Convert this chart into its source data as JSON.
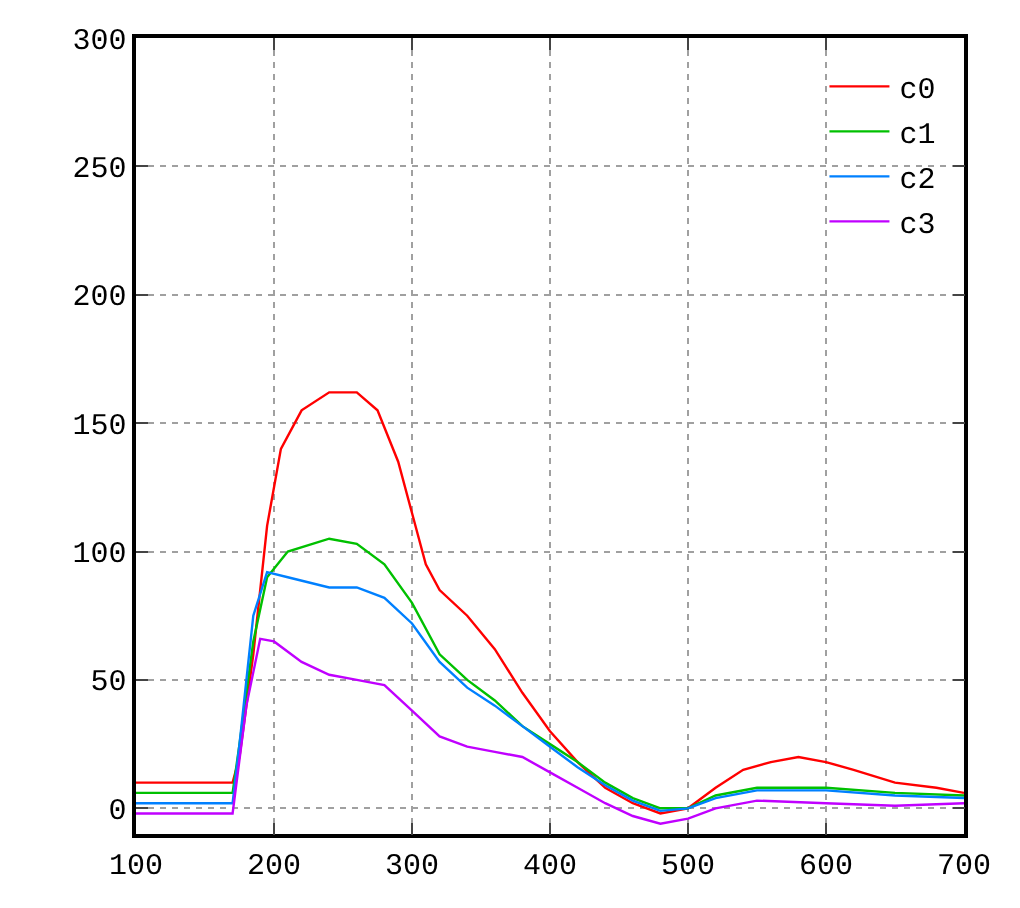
{
  "chart_data": {
    "type": "line",
    "xlim": [
      100,
      700
    ],
    "ylim": [
      -10,
      300
    ],
    "xticks": [
      100,
      200,
      300,
      400,
      500,
      600,
      700
    ],
    "yticks": [
      0,
      50,
      100,
      150,
      200,
      250,
      300
    ],
    "grid": true,
    "legend": "top right",
    "marker": "none",
    "line_style": "solid",
    "series": [
      {
        "name": "c0",
        "color": "#ff0000",
        "x": [
          100,
          120,
          140,
          160,
          170,
          175,
          185,
          195,
          205,
          220,
          240,
          260,
          275,
          290,
          300,
          310,
          320,
          340,
          360,
          380,
          400,
          420,
          440,
          460,
          480,
          500,
          520,
          540,
          560,
          580,
          600,
          620,
          650,
          680,
          700
        ],
        "values": [
          10,
          10,
          10,
          10,
          10,
          20,
          60,
          110,
          140,
          155,
          162,
          162,
          155,
          135,
          115,
          95,
          85,
          75,
          62,
          45,
          30,
          18,
          8,
          2,
          -2,
          0,
          8,
          15,
          18,
          20,
          18,
          15,
          10,
          8,
          6
        ]
      },
      {
        "name": "c1",
        "color": "#00c000",
        "x": [
          100,
          120,
          140,
          160,
          170,
          175,
          185,
          195,
          210,
          240,
          260,
          280,
          300,
          320,
          340,
          360,
          380,
          400,
          420,
          440,
          460,
          480,
          500,
          520,
          550,
          600,
          650,
          700
        ],
        "values": [
          6,
          6,
          6,
          6,
          6,
          25,
          65,
          90,
          100,
          105,
          103,
          95,
          80,
          60,
          50,
          42,
          32,
          25,
          18,
          10,
          4,
          0,
          0,
          5,
          8,
          8,
          6,
          5
        ]
      },
      {
        "name": "c2",
        "color": "#0080ff",
        "x": [
          100,
          120,
          140,
          160,
          170,
          175,
          185,
          195,
          210,
          240,
          260,
          280,
          300,
          320,
          340,
          360,
          380,
          400,
          420,
          440,
          460,
          480,
          500,
          520,
          550,
          600,
          650,
          700
        ],
        "values": [
          2,
          2,
          2,
          2,
          2,
          25,
          75,
          92,
          90,
          86,
          86,
          82,
          72,
          57,
          47,
          40,
          32,
          24,
          16,
          9,
          3,
          -1,
          0,
          4,
          7,
          7,
          5,
          4
        ]
      },
      {
        "name": "c3",
        "color": "#c000ff",
        "x": [
          100,
          120,
          140,
          160,
          170,
          180,
          190,
          200,
          220,
          240,
          260,
          280,
          300,
          320,
          340,
          360,
          380,
          400,
          420,
          440,
          460,
          480,
          500,
          520,
          550,
          600,
          650,
          700
        ],
        "values": [
          -2,
          -2,
          -2,
          -2,
          -2,
          40,
          66,
          65,
          57,
          52,
          50,
          48,
          38,
          28,
          24,
          22,
          20,
          14,
          8,
          2,
          -3,
          -6,
          -4,
          0,
          3,
          2,
          1,
          2
        ]
      }
    ]
  }
}
